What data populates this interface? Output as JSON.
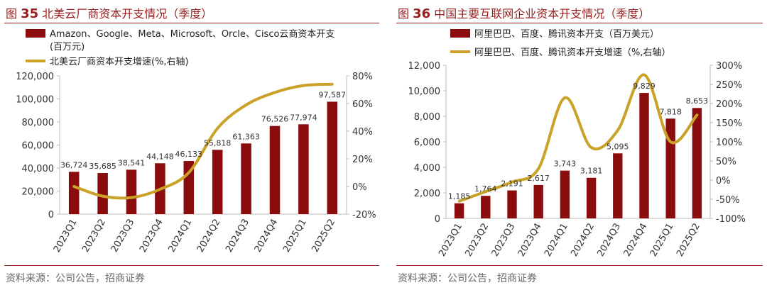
{
  "colors": {
    "bar": "#8b0c0c",
    "line": "#c9a227",
    "accent": "#9b1c1c"
  },
  "left": {
    "fig_label": "图",
    "fig_num": "35",
    "fig_title": "北美云厂商资本开支情况（季度）",
    "source": "资料来源：公司公告，招商证券",
    "chart_data": {
      "type": "bar",
      "categories": [
        "2023Q1",
        "2023Q2",
        "2023Q3",
        "2023Q4",
        "2024Q1",
        "2024Q2",
        "2024Q3",
        "2024Q4",
        "2025Q1",
        "2025Q2"
      ],
      "series": [
        {
          "name": "Amazon、Google、Meta、Microsoft、Orcle、Cisco云商资本开支(百万元)",
          "type": "bar",
          "axis": "left",
          "values": [
            36724,
            35685,
            38541,
            44148,
            46133,
            55818,
            61363,
            76526,
            77974,
            97587
          ]
        },
        {
          "name": "北美云厂商资本开支增速(%,右轴)",
          "type": "line",
          "axis": "right",
          "values": [
            0,
            -7,
            -8,
            -2,
            10,
            42,
            59,
            68,
            73,
            74
          ]
        }
      ],
      "value_labels": [
        "36,724",
        "35,685",
        "38,541",
        "44,148",
        "46,133",
        "55,818",
        "61,363",
        "76,526",
        "77,974",
        "97,587"
      ],
      "legend_lines": [
        "Amazon、Google、Meta、Microsoft、Orcle、Cisco云商资本开支",
        "(百万元)",
        "北美云厂商资本开支增速(%,右轴)"
      ],
      "ylim": [
        0,
        120000
      ],
      "yticks": [
        "0",
        "20,000",
        "40,000",
        "60,000",
        "80,000",
        "100,000",
        "120,000"
      ],
      "y2lim": [
        -20,
        80
      ],
      "y2ticks": [
        "-20%",
        "0%",
        "20%",
        "40%",
        "60%",
        "80%"
      ],
      "legend_position": "top-left",
      "grid": false
    }
  },
  "right": {
    "fig_label": "图",
    "fig_num": "36",
    "fig_title": "中国主要互联网企业资本开支情况（季度）",
    "source": "资料来源：公司公告，招商证券",
    "chart_data": {
      "type": "bar",
      "categories": [
        "2023Q1",
        "2023Q2",
        "2023Q3",
        "2023Q4",
        "2024Q1",
        "2024Q2",
        "2024Q3",
        "2024Q4",
        "2025Q1",
        "2025Q2"
      ],
      "series": [
        {
          "name": "阿里巴巴、百度、腾讯资本开支（百万美元）",
          "type": "bar",
          "axis": "left",
          "values": [
            1185,
            1764,
            2191,
            2617,
            3743,
            3181,
            5095,
            9829,
            7818,
            8653
          ]
        },
        {
          "name": "阿里巴巴、百度、腾讯资本开支增速（%,右轴）",
          "type": "line",
          "axis": "right",
          "values": [
            -55,
            -30,
            -5,
            30,
            215,
            85,
            130,
            275,
            100,
            170
          ]
        }
      ],
      "value_labels": [
        "1,185",
        "1,764",
        "2,191",
        "2,617",
        "3,743",
        "3,181",
        "5,095",
        "9,829",
        "7,818",
        "8,653"
      ],
      "legend_lines": [
        "阿里巴巴、百度、腾讯资本开支（百万美元）",
        "阿里巴巴、百度、腾讯资本开支增速（%,右轴）"
      ],
      "ylim": [
        0,
        12000
      ],
      "yticks": [
        "0",
        "2,000",
        "4,000",
        "6,000",
        "8,000",
        "10,000",
        "12,000"
      ],
      "y2lim": [
        -100,
        300
      ],
      "y2ticks": [
        "-100%",
        "-50%",
        "0%",
        "50%",
        "100%",
        "150%",
        "200%",
        "250%",
        "300%"
      ],
      "legend_position": "top-left",
      "grid": false
    }
  }
}
